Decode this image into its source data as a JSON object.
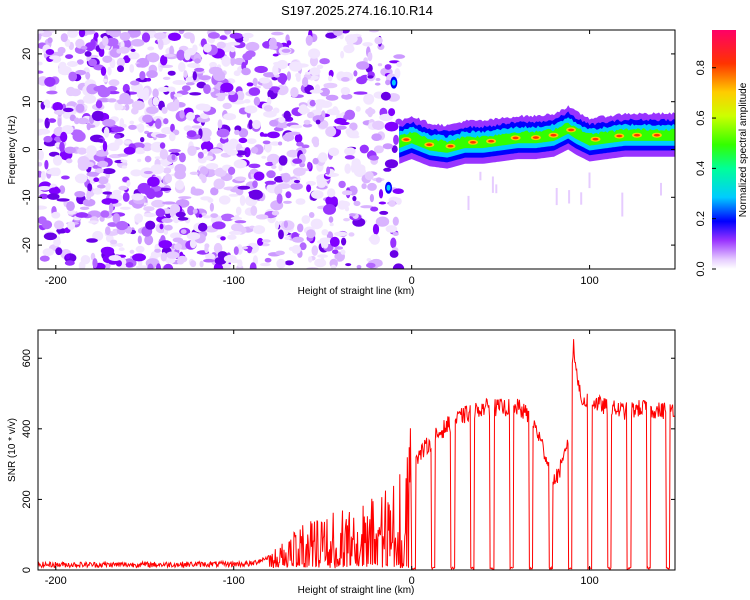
{
  "title": "S197.2025.274.16.10.R14",
  "chart_data": [
    {
      "type": "heatmap",
      "name": "spectrogram",
      "xlabel": "Height of straight line (km)",
      "ylabel": "Frequency (Hz)",
      "xlim": [
        -210,
        148
      ],
      "ylim": [
        -25,
        25
      ],
      "xticks": [
        -200,
        -100,
        0,
        100
      ],
      "xtick_labels": [
        "-200",
        "-100",
        "0",
        "100"
      ],
      "yticks": [
        -20,
        -10,
        0,
        10,
        20
      ],
      "ytick_labels": [
        "-20",
        "-10",
        "0",
        "10",
        "20"
      ],
      "noise_region_km": [
        -210,
        -7
      ],
      "signal_frequency_trace": [
        {
          "x": -7,
          "y": 1.5
        },
        {
          "x": 0,
          "y": 2.5
        },
        {
          "x": 10,
          "y": 1.0
        },
        {
          "x": 20,
          "y": 0.5
        },
        {
          "x": 30,
          "y": 1.5
        },
        {
          "x": 40,
          "y": 1.5
        },
        {
          "x": 50,
          "y": 2.0
        },
        {
          "x": 60,
          "y": 2.5
        },
        {
          "x": 70,
          "y": 2.5
        },
        {
          "x": 80,
          "y": 3.0
        },
        {
          "x": 88,
          "y": 4.5
        },
        {
          "x": 92,
          "y": 3.5
        },
        {
          "x": 100,
          "y": 2.0
        },
        {
          "x": 110,
          "y": 2.5
        },
        {
          "x": 120,
          "y": 3.0
        },
        {
          "x": 130,
          "y": 3.0
        },
        {
          "x": 148,
          "y": 3.0
        }
      ],
      "colorbar": {
        "label": "Normalized spectral amplitude",
        "range": [
          0,
          0.95
        ],
        "ticks": [
          0,
          0.2,
          0.4,
          0.6,
          0.8
        ],
        "tick_labels": [
          "0.0",
          "0.2",
          "0.4",
          "0.6",
          "0.8"
        ],
        "colormap": "rainbow"
      }
    },
    {
      "type": "line",
      "name": "snr",
      "xlabel": "Height of straight line (km)",
      "ylabel": "SNR (10 * v/v)",
      "xlim": [
        -210,
        148
      ],
      "ylim": [
        0,
        680
      ],
      "xticks": [
        -200,
        -100,
        0,
        100
      ],
      "xtick_labels": [
        "-200",
        "-100",
        "0",
        "100"
      ],
      "yticks": [
        0,
        200,
        400,
        600
      ],
      "ytick_labels": [
        "0",
        "200",
        "400",
        "600"
      ],
      "line_color": "#ff0000",
      "series": [
        {
          "name": "SNR",
          "points": [
            {
              "x": -210,
              "y": 12
            },
            {
              "x": -180,
              "y": 12
            },
            {
              "x": -150,
              "y": 12
            },
            {
              "x": -120,
              "y": 13
            },
            {
              "x": -90,
              "y": 14
            },
            {
              "x": -75,
              "y": 45
            },
            {
              "x": -60,
              "y": 90
            },
            {
              "x": -45,
              "y": 110
            },
            {
              "x": -30,
              "y": 130
            },
            {
              "x": -15,
              "y": 150
            },
            {
              "x": -5,
              "y": 190
            },
            {
              "x": 0,
              "y": 300
            },
            {
              "x": 5,
              "y": 330
            },
            {
              "x": 10,
              "y": 360
            },
            {
              "x": 20,
              "y": 410
            },
            {
              "x": 30,
              "y": 440
            },
            {
              "x": 40,
              "y": 460
            },
            {
              "x": 50,
              "y": 460
            },
            {
              "x": 60,
              "y": 460
            },
            {
              "x": 65,
              "y": 440
            },
            {
              "x": 70,
              "y": 400
            },
            {
              "x": 75,
              "y": 330
            },
            {
              "x": 80,
              "y": 250
            },
            {
              "x": 85,
              "y": 300
            },
            {
              "x": 88,
              "y": 380
            },
            {
              "x": 91,
              "y": 640
            },
            {
              "x": 95,
              "y": 480
            },
            {
              "x": 100,
              "y": 480
            },
            {
              "x": 110,
              "y": 460
            },
            {
              "x": 120,
              "y": 450
            },
            {
              "x": 130,
              "y": 460
            },
            {
              "x": 140,
              "y": 450
            },
            {
              "x": 148,
              "y": 460
            }
          ],
          "dropouts_to_zero": true
        }
      ]
    }
  ]
}
